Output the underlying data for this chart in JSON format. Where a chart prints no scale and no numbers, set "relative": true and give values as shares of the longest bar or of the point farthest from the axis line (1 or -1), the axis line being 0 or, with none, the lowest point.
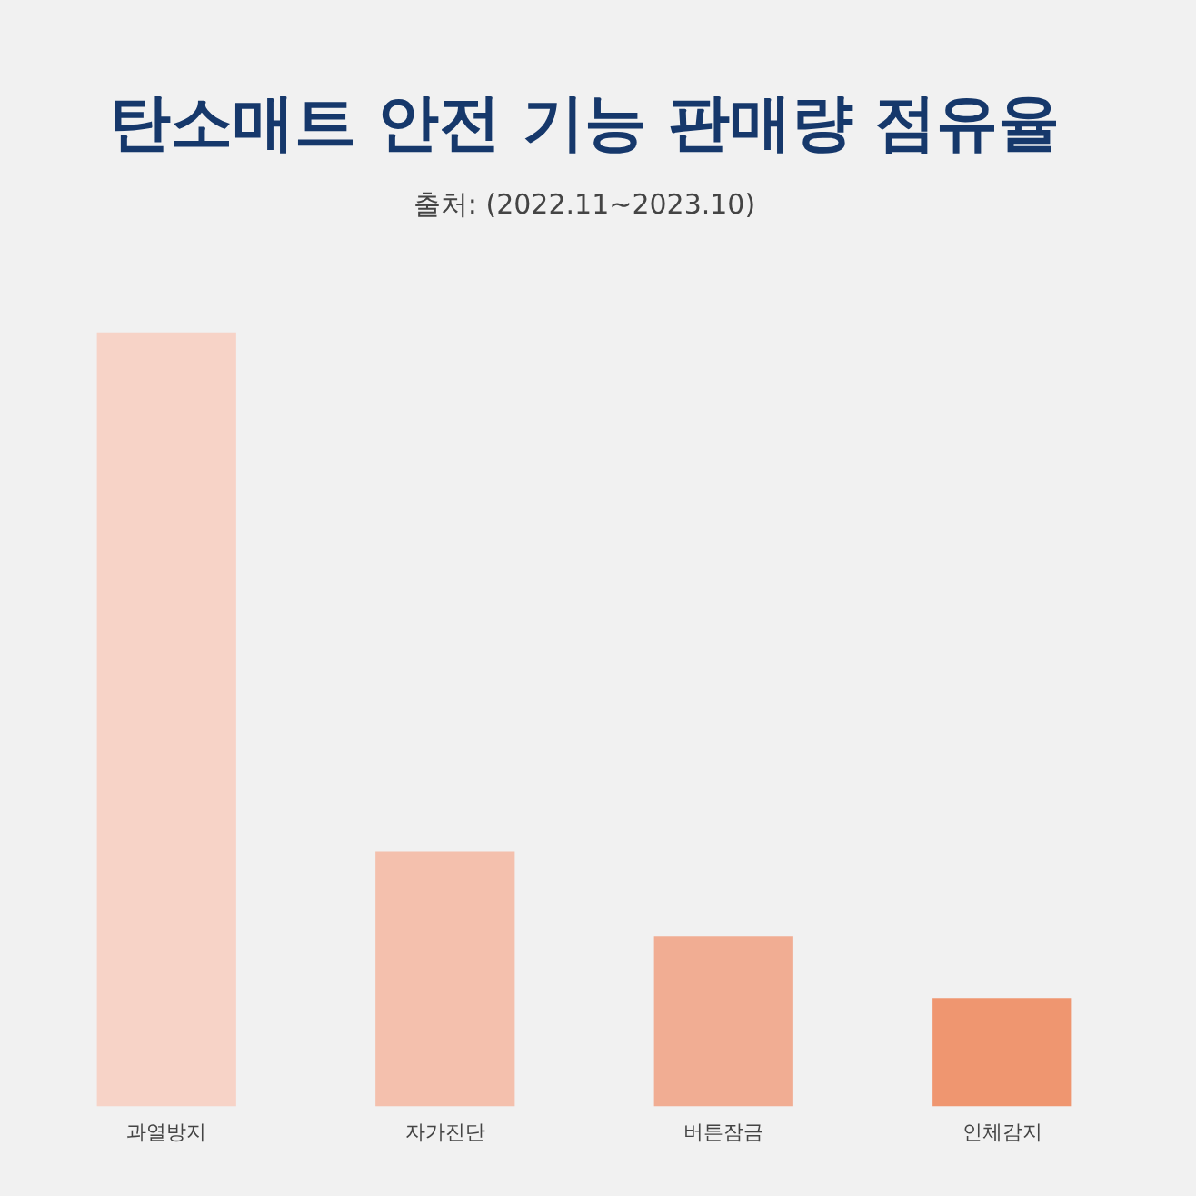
{
  "chart_data": {
    "type": "bar",
    "title": "탄소매트 안전 기능 판매량 점유율",
    "subtitle": "출처: (2022.11~2023.10)",
    "categories": [
      "과열방지",
      "자가진단",
      "버튼잠금",
      "인체감지"
    ],
    "values": [
      1,
      0.33,
      0.22,
      0.14
    ],
    "colors": [
      "#f7d3c7",
      "#f4c0ad",
      "#f1ad93",
      "#ef9670"
    ],
    "relative": true,
    "grid": false,
    "legend": false
  }
}
